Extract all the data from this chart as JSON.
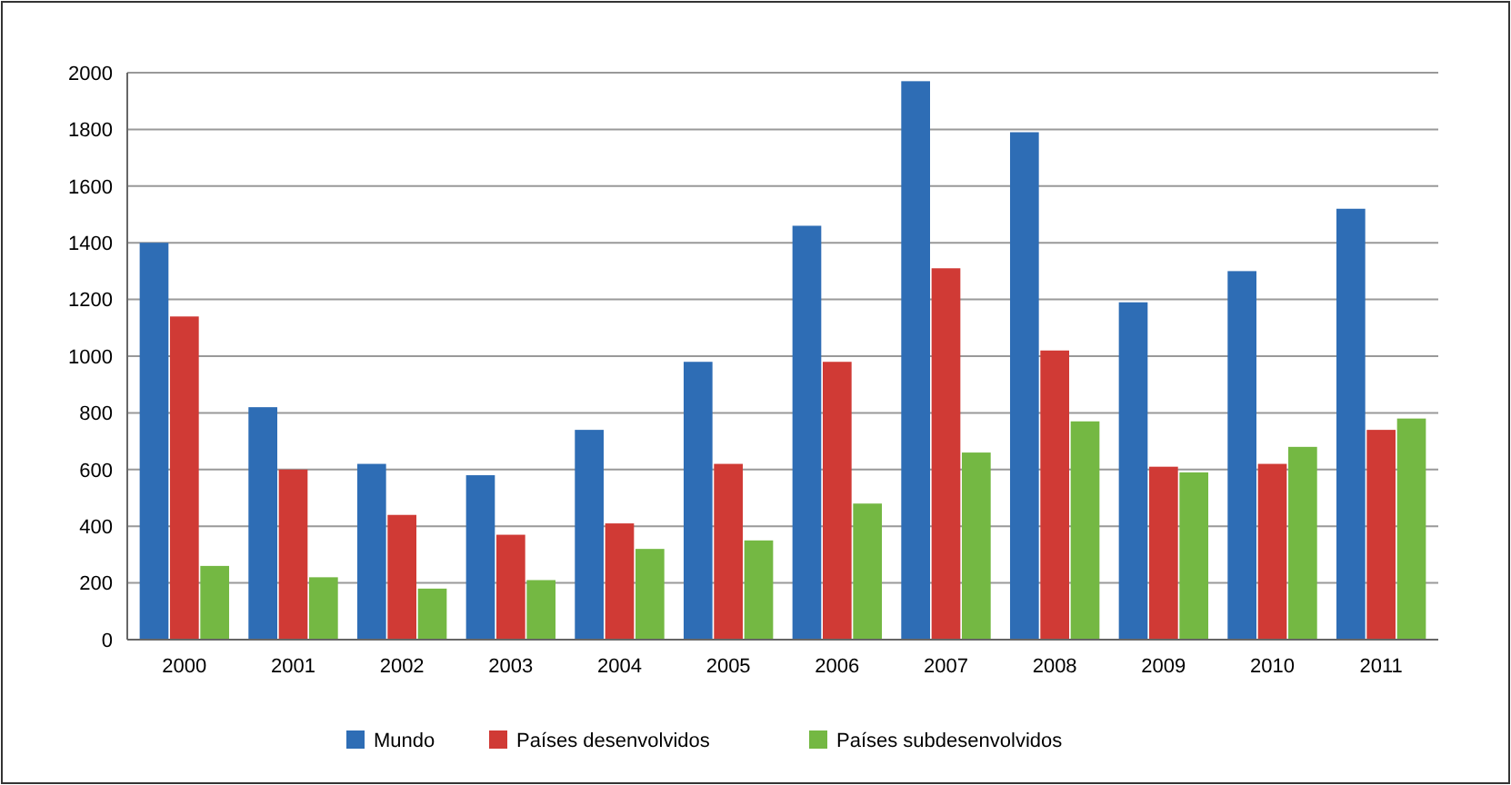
{
  "chart_data": {
    "type": "bar",
    "categories": [
      "2000",
      "2001",
      "2002",
      "2003",
      "2004",
      "2005",
      "2006",
      "2007",
      "2008",
      "2009",
      "2010",
      "2011"
    ],
    "series": [
      {
        "name": "Mundo",
        "color": "#2e6db5",
        "values": [
          1400,
          820,
          620,
          580,
          740,
          980,
          1460,
          1970,
          1790,
          1190,
          1300,
          1520
        ]
      },
      {
        "name": "Países desenvolvidos",
        "color": "#d03a35",
        "values": [
          1140,
          600,
          440,
          370,
          410,
          620,
          980,
          1310,
          1020,
          610,
          620,
          740
        ]
      },
      {
        "name": "Países subdesenvolvidos",
        "color": "#74b843",
        "values": [
          260,
          220,
          180,
          210,
          320,
          350,
          480,
          660,
          770,
          590,
          680,
          780
        ]
      }
    ],
    "ylim": [
      0,
      2000
    ],
    "yticks": [
      0,
      200,
      400,
      600,
      800,
      1000,
      1200,
      1400,
      1600,
      1800,
      2000
    ],
    "grid": "y",
    "legend": "bottom"
  }
}
